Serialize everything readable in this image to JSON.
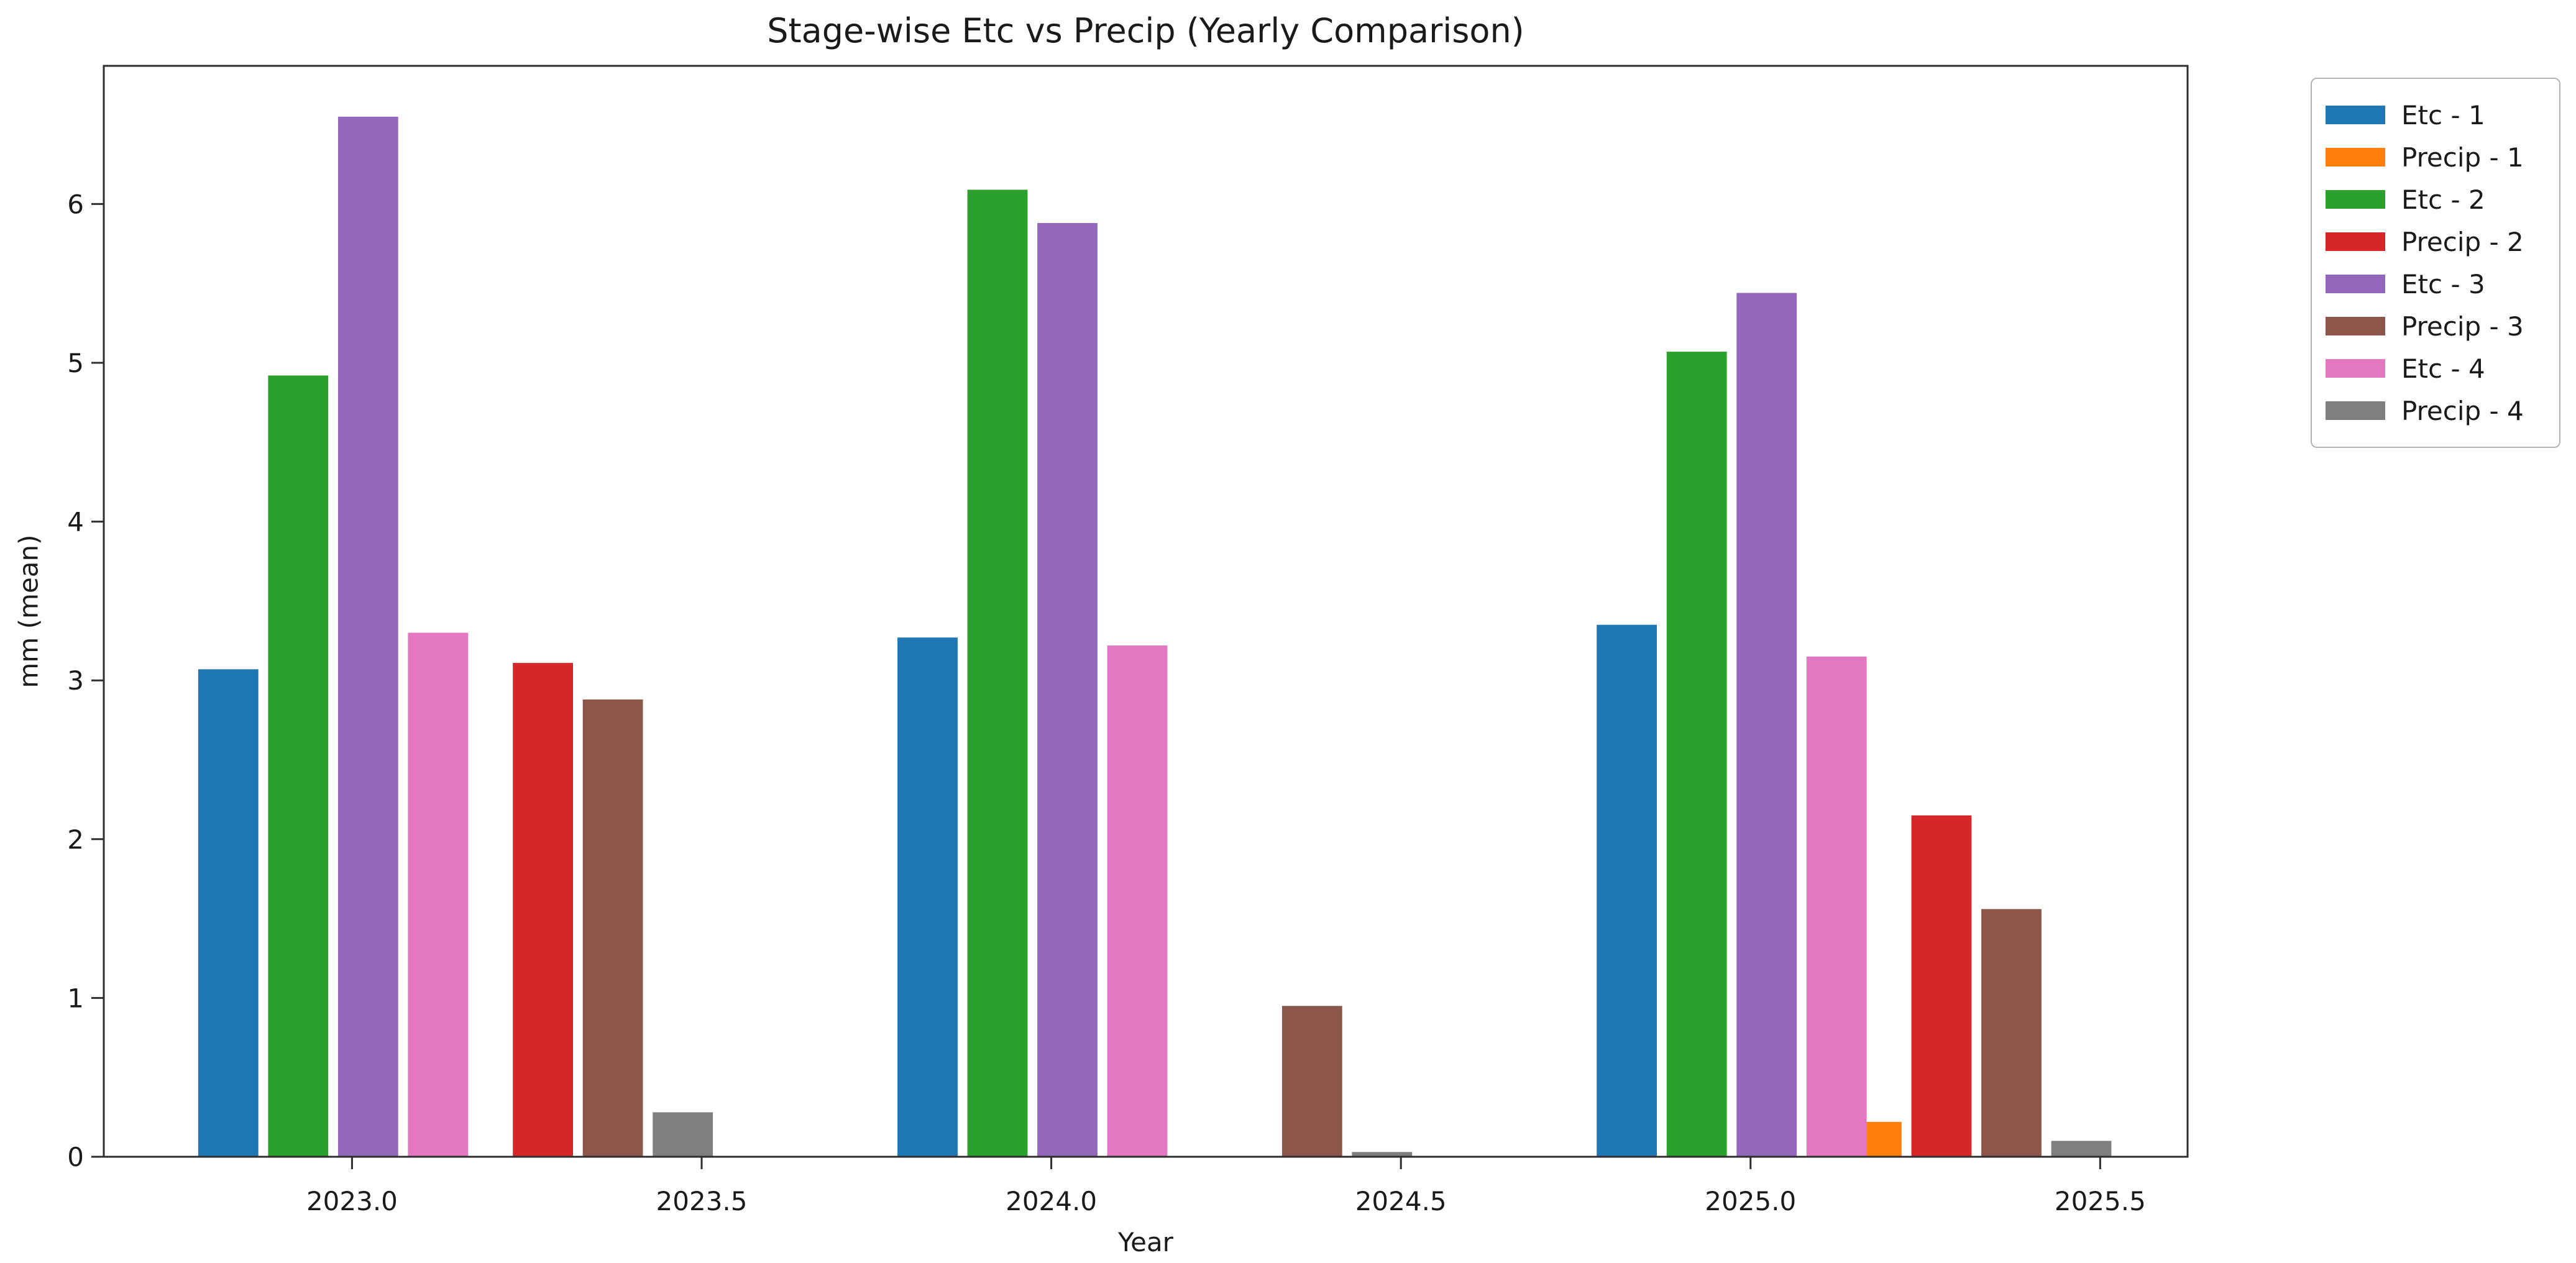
{
  "chart_data": {
    "type": "bar",
    "title": "Stage-wise Etc vs Precip (Yearly Comparison)",
    "xlabel": "Year",
    "ylabel": "mm (mean)",
    "x": [
      2023,
      2024,
      2025
    ],
    "xticks": {
      "values": [
        2023.0,
        2023.5,
        2024.0,
        2024.5,
        2025.0,
        2025.5
      ],
      "labels": [
        "2023.0",
        "2023.5",
        "2024.0",
        "2024.5",
        "2025.0",
        "2025.5"
      ]
    },
    "yticks": {
      "values": [
        0,
        1,
        2,
        3,
        4,
        5,
        6
      ],
      "labels": [
        "0",
        "1",
        "2",
        "3",
        "4",
        "5",
        "6"
      ]
    },
    "xlim": [
      2022.645,
      2025.625
    ],
    "ylim": [
      0,
      6.87
    ],
    "grid": false,
    "legend_position": "outside-upper-right",
    "bar_width": 0.086,
    "slot_offsets": [
      -0.22,
      -0.12,
      -0.02,
      0.08
    ],
    "series": [
      {
        "name": "Etc - 1",
        "color": "#1f77b4",
        "group_shift": 0,
        "slot": 0,
        "values": [
          3.07,
          3.27,
          3.35
        ]
      },
      {
        "name": "Precip - 1",
        "color": "#ff7f0e",
        "group_shift": 0.35,
        "slot": 0,
        "values": [
          0,
          0,
          0.22
        ]
      },
      {
        "name": "Etc - 2",
        "color": "#2ca02c",
        "group_shift": 0,
        "slot": 1,
        "values": [
          4.92,
          6.09,
          5.07
        ]
      },
      {
        "name": "Precip - 2",
        "color": "#d62728",
        "group_shift": 0.35,
        "slot": 1,
        "values": [
          3.11,
          0,
          2.15
        ]
      },
      {
        "name": "Etc - 3",
        "color": "#9467bd",
        "group_shift": 0,
        "slot": 2,
        "values": [
          6.55,
          5.88,
          5.44
        ]
      },
      {
        "name": "Precip - 3",
        "color": "#8c564b",
        "group_shift": 0.35,
        "slot": 2,
        "values": [
          2.88,
          0.95,
          1.56
        ]
      },
      {
        "name": "Etc - 4",
        "color": "#e377c2",
        "group_shift": 0,
        "slot": 3,
        "values": [
          3.3,
          3.22,
          3.15
        ]
      },
      {
        "name": "Precip - 4",
        "color": "#7f7f7f",
        "group_shift": 0.35,
        "slot": 3,
        "values": [
          0.28,
          0.03,
          0.1
        ]
      }
    ],
    "axis_color": "#2e2e2e",
    "text_color": "#1a1a1a"
  }
}
